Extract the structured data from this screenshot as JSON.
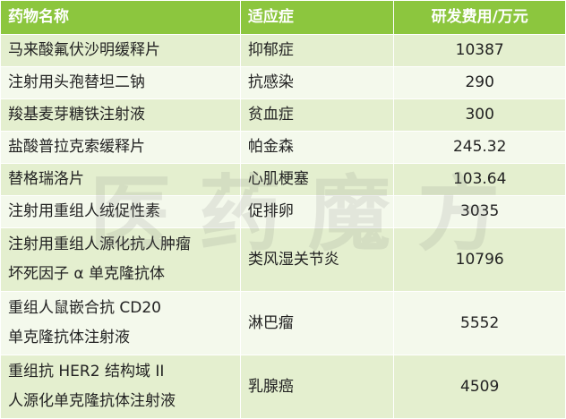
{
  "table": {
    "header": [
      "药物名称",
      "适应症",
      "研发费用/万元"
    ],
    "rows": [
      [
        [
          "马来酸氟伏沙明缓释片"
        ],
        [
          "抑郁症"
        ],
        [
          "10387"
        ]
      ],
      [
        [
          "注射用头孢替坦二钠"
        ],
        [
          "抗感染"
        ],
        [
          "290"
        ]
      ],
      [
        [
          "羧基麦芽糖铁注射液"
        ],
        [
          "贫血症"
        ],
        [
          "300"
        ]
      ],
      [
        [
          "盐酸普拉克索缓释片"
        ],
        [
          "帕金森"
        ],
        [
          "245.32"
        ]
      ],
      [
        [
          "替格瑞洛片"
        ],
        [
          "心肌梗塞"
        ],
        [
          "103.64"
        ]
      ],
      [
        [
          "注射用重组人绒促性素"
        ],
        [
          "促排卵"
        ],
        [
          "3035"
        ]
      ],
      [
        [
          "注射用重组人源化抗人肿瘤",
          "坏死因子 α 单克隆抗体"
        ],
        [
          "类风湿关节炎"
        ],
        [
          "10796"
        ]
      ],
      [
        [
          "重组人鼠嵌合抗 CD20",
          "单克隆抗体注射液"
        ],
        [
          "淋巴瘤"
        ],
        [
          "5552"
        ]
      ],
      [
        [
          "重组抗 HER2 结构域 II",
          "人源化单克隆抗体注射液"
        ],
        [
          "乳腺癌"
        ],
        [
          "4509"
        ]
      ]
    ]
  },
  "watermark": "医药魔方"
}
